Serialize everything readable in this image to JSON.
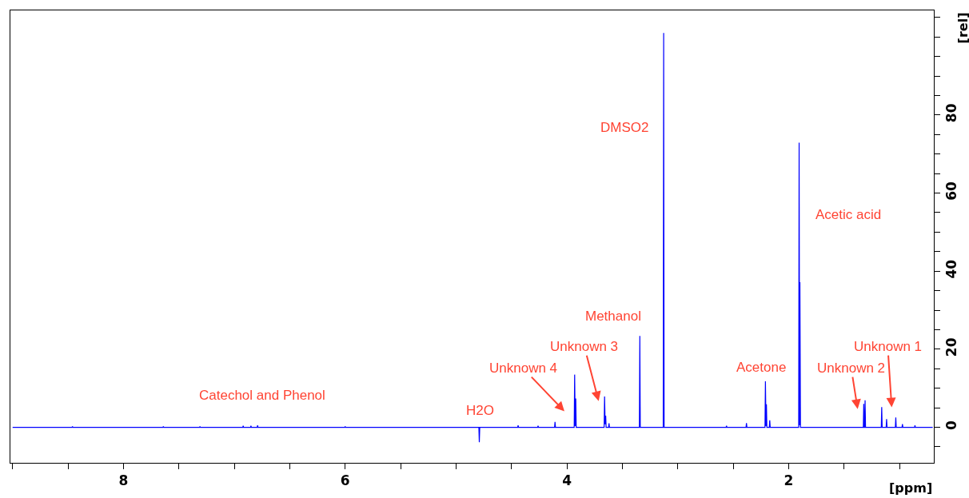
{
  "chart_data": {
    "type": "line",
    "xlabel": "[ppm]",
    "ylabel": "[rel]",
    "xlim": [
      9.02,
      0.69
    ],
    "ylim": [
      -9.1,
      106.8
    ],
    "xticks": [
      {
        "value": 9.0,
        "label": null
      },
      {
        "value": 8.5,
        "label": null
      },
      8,
      {
        "value": 7.5,
        "label": null
      },
      {
        "value": 7.0,
        "label": null
      },
      {
        "value": 6.5,
        "label": null
      },
      6,
      {
        "value": 5.5,
        "label": null
      },
      {
        "value": 5.0,
        "label": null
      },
      {
        "value": 4.5,
        "label": null
      },
      4,
      {
        "value": 3.5,
        "label": null
      },
      {
        "value": 3.0,
        "label": null
      },
      {
        "value": 2.5,
        "label": null
      },
      2,
      {
        "value": 1.5,
        "label": null
      },
      {
        "value": 1.0,
        "label": null
      }
    ],
    "yticks": [
      {
        "value": -5,
        "label": null
      },
      0,
      {
        "value": 5,
        "label": null
      },
      {
        "value": 10,
        "label": null
      },
      {
        "value": 15,
        "label": null
      },
      20,
      {
        "value": 25,
        "label": null
      },
      {
        "value": 30,
        "label": null
      },
      {
        "value": 35,
        "label": null
      },
      40,
      {
        "value": 45,
        "label": null
      },
      {
        "value": 50,
        "label": null
      },
      {
        "value": 55,
        "label": null
      },
      60,
      {
        "value": 65,
        "label": null
      },
      {
        "value": 70,
        "label": null
      },
      {
        "value": 75,
        "label": null
      },
      80,
      {
        "value": 85,
        "label": null
      },
      {
        "value": 90,
        "label": null
      },
      {
        "value": 95,
        "label": null
      },
      {
        "value": 100,
        "label": null
      },
      {
        "value": 105,
        "label": null
      }
    ],
    "tick_labels": {
      "x": true,
      "y": true
    },
    "series": [
      {
        "color": "#0000ff",
        "x": [
          0.7,
          0.856,
          0.86,
          0.864,
          0.969,
          0.973,
          0.977,
          1.029,
          1.033,
          1.037,
          1.112,
          1.116,
          1.12,
          1.156,
          1.16,
          1.164,
          1.306,
          1.31,
          1.314,
          1.318,
          1.322,
          1.326,
          1.893,
          1.898,
          1.901,
          1.905,
          1.909,
          2.166,
          2.17,
          2.174,
          2.196,
          2.2,
          2.204,
          2.209,
          2.213,
          2.376,
          2.38,
          2.384,
          2.556,
          2.56,
          2.564,
          3.123,
          3.127,
          3.131,
          3.338,
          3.342,
          3.346,
          3.616,
          3.62,
          3.624,
          3.646,
          3.65,
          3.655,
          3.66,
          3.664,
          3.916,
          3.92,
          3.925,
          3.93,
          3.934,
          4.103,
          4.107,
          4.111,
          4.256,
          4.26,
          4.264,
          4.436,
          4.44,
          4.444,
          4.786,
          4.79,
          4.794,
          5.996,
          6.0,
          6.004,
          6.786,
          6.79,
          6.794,
          6.846,
          6.85,
          6.854,
          6.916,
          6.92,
          6.924,
          7.306,
          7.31,
          7.314,
          7.636,
          7.64,
          7.644,
          8.456,
          8.46,
          8.464,
          9.0
        ],
        "values": [
          0,
          0,
          0.5,
          0,
          0,
          0.8,
          0,
          0,
          2.5,
          0,
          0,
          2.1,
          0,
          0,
          5.2,
          0,
          0,
          6.9,
          0,
          0,
          6.0,
          0,
          0,
          37.2,
          0.5,
          72.9,
          0,
          0,
          1.8,
          0,
          0,
          5.9,
          0.3,
          11.8,
          0,
          0,
          1.1,
          0,
          0,
          0.4,
          0,
          0,
          101,
          0,
          0,
          23.4,
          0,
          0,
          1.0,
          0,
          0,
          3.0,
          0.8,
          7.9,
          0,
          0,
          7.4,
          0.3,
          13.5,
          0,
          0,
          1.4,
          0,
          0,
          0.4,
          0,
          0,
          0.5,
          0,
          0,
          -3.8,
          0,
          0,
          0.2,
          0,
          0,
          0.5,
          0,
          0,
          0.4,
          0,
          0,
          0.4,
          0,
          0,
          0.2,
          0,
          0,
          0.2,
          0,
          0,
          0.2,
          0,
          0
        ]
      }
    ],
    "annotations": [
      "Catechol and Phenol",
      "H2O",
      "Unknown 4",
      "Unknown 3",
      "Methanol",
      "DMSO2",
      "Acetone",
      "Acetic acid",
      "Unknown 2",
      "Unknown 1"
    ]
  }
}
